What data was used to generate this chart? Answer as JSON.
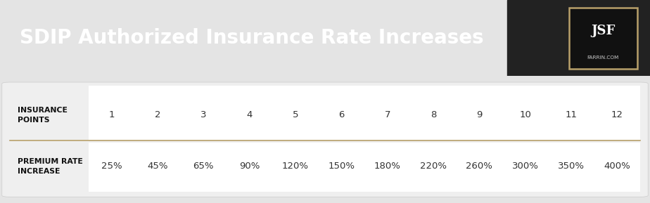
{
  "title": "SDIP Authorized Insurance Rate Increases",
  "title_color": "#ffffff",
  "title_bg_color": "#111111",
  "title_fontsize": 20,
  "header_label1": "INSURANCE\nPOINTS",
  "header_label2": "PREMIUM RATE\nINCREASE",
  "points": [
    "1",
    "2",
    "3",
    "4",
    "5",
    "6",
    "7",
    "8",
    "9",
    "10",
    "11",
    "12"
  ],
  "rates": [
    "25%",
    "45%",
    "65%",
    "90%",
    "120%",
    "150%",
    "180%",
    "220%",
    "260%",
    "300%",
    "350%",
    "400%"
  ],
  "cell_bg": "#ffffff",
  "row_header_color": "#111111",
  "cell_color": "#333333",
  "divider_color": "#b8a06a",
  "outer_bg": "#e4e4e4",
  "table_bg": "#efefef",
  "logo_bg": "#111111",
  "logo_border": "#b8a06a",
  "logo_text": "JSF",
  "logo_sub": "FARRIN.COM"
}
